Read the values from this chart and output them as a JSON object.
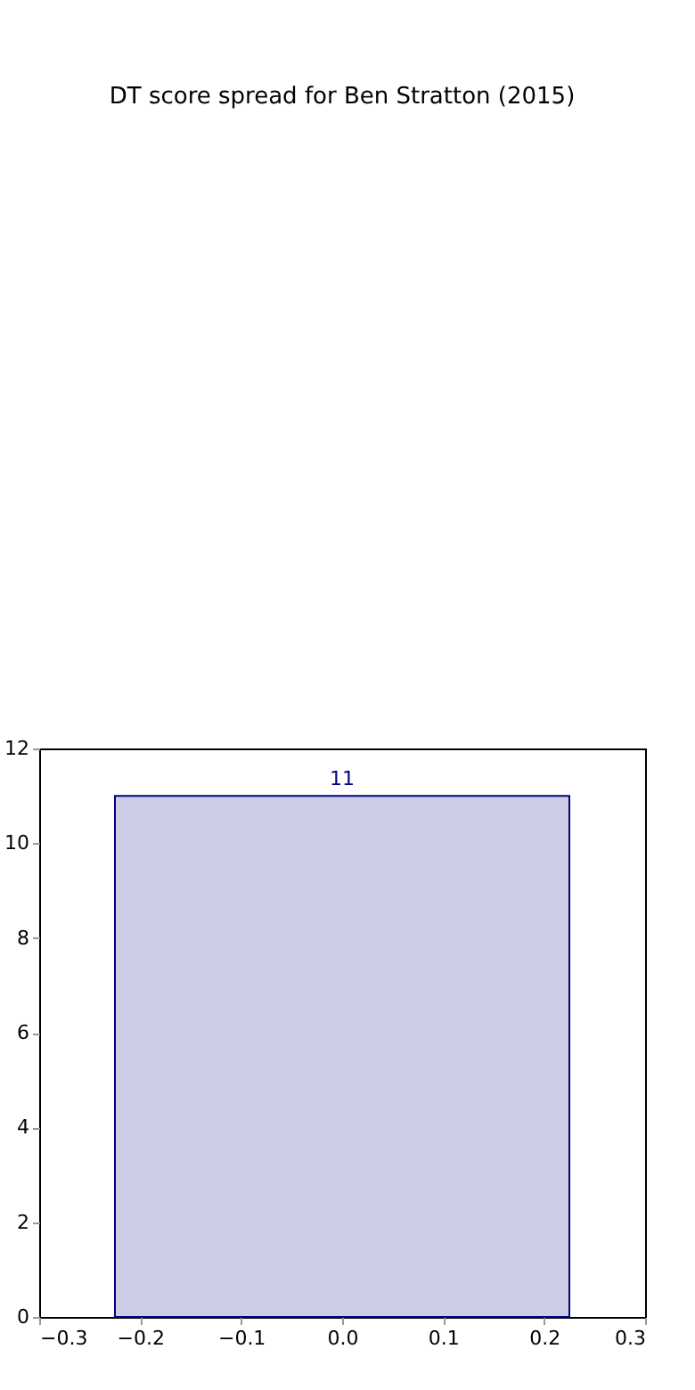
{
  "chart_data": {
    "type": "histogram",
    "title": "DT score spread for Ben Stratton (2015)",
    "bins": [
      -0.225,
      0.225
    ],
    "values": [
      11
    ],
    "color": "#cccce4",
    "xlim": [
      -0.3,
      0.3
    ],
    "xticks": [
      {
        "value": -0.3,
        "label": "−0.3"
      },
      {
        "value": -0.2,
        "label": "−0.2"
      },
      {
        "value": -0.1,
        "label": "−0.1"
      },
      {
        "value": 0,
        "label": "0.0"
      },
      {
        "value": 0.1,
        "label": "0.1"
      },
      {
        "value": 0.2,
        "label": "0.2"
      },
      {
        "value": 0.3,
        "label": "0.3"
      }
    ],
    "ylim": [
      0,
      12
    ],
    "yticks": [
      0,
      2,
      4,
      6,
      8,
      10,
      12
    ],
    "data_labels": true,
    "grid": false
  }
}
